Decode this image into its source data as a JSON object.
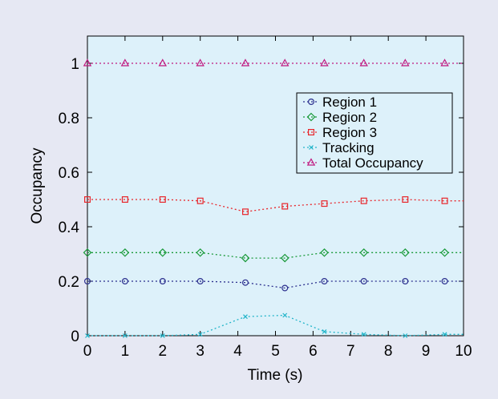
{
  "chart_data": {
    "type": "line",
    "title": "",
    "xlabel": "Time (s)",
    "ylabel": "Occupancy",
    "xlim": [
      0,
      10
    ],
    "ylim": [
      0,
      1.1
    ],
    "x_ticks": [
      0,
      1,
      2,
      3,
      4,
      5,
      6,
      7,
      8,
      9,
      10
    ],
    "y_ticks": [
      0,
      0.2,
      0.4,
      0.6,
      0.8,
      1
    ],
    "x_tick_labels": [
      "0",
      "1",
      "2",
      "3",
      "4",
      "5",
      "6",
      "7",
      "8",
      "9",
      "10"
    ],
    "y_tick_labels": [
      "0",
      "0.2",
      "0.4",
      "0.6",
      "0.8",
      "1"
    ],
    "grid": false,
    "legend_position": "top-right",
    "x": [
      0,
      1,
      2,
      3,
      4.2,
      5.25,
      6.3,
      7.35,
      8.45,
      9.5,
      10
    ],
    "series": [
      {
        "name": "Region 1",
        "marker": "circle",
        "color": "#2b2f8e",
        "values": [
          0.2,
          0.2,
          0.2,
          0.2,
          0.195,
          0.175,
          0.2,
          0.2,
          0.2,
          0.2,
          0.2
        ]
      },
      {
        "name": "Region 2",
        "marker": "diamond",
        "color": "#1a9a3a",
        "values": [
          0.305,
          0.305,
          0.305,
          0.305,
          0.285,
          0.285,
          0.305,
          0.305,
          0.305,
          0.305,
          0.305
        ]
      },
      {
        "name": "Region 3",
        "marker": "square",
        "color": "#e8262b",
        "values": [
          0.5,
          0.5,
          0.5,
          0.495,
          0.455,
          0.475,
          0.485,
          0.495,
          0.5,
          0.495,
          0.495
        ]
      },
      {
        "name": "Tracking",
        "marker": "x",
        "color": "#22b5c9",
        "values": [
          0,
          0,
          0,
          0.005,
          0.07,
          0.075,
          0.015,
          0.005,
          0,
          0.005,
          0.005
        ]
      },
      {
        "name": "Total Occupancy",
        "marker": "triangle",
        "color": "#c0187f",
        "values": [
          1,
          1,
          1,
          1,
          1,
          1,
          1,
          1,
          1,
          1,
          1
        ]
      }
    ],
    "colors": {
      "figure_background": "#e6e8f3",
      "plot_background": "#ddf1fa"
    }
  }
}
